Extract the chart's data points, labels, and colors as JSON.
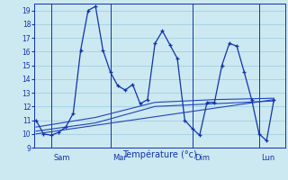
{
  "background_color": "#cce8f0",
  "grid_color": "#99cce0",
  "line_color": "#1133aa",
  "line_color2": "#2244bb",
  "xlabel": "Température (°c)",
  "ylim": [
    9,
    19.5
  ],
  "y_ticks": [
    9,
    10,
    11,
    12,
    13,
    14,
    15,
    16,
    17,
    18,
    19
  ],
  "series1_x": [
    0,
    1,
    2,
    3,
    4,
    5,
    6,
    7,
    8,
    9,
    10,
    11,
    12,
    13,
    14,
    15,
    16,
    17,
    18,
    19,
    20,
    21,
    22,
    23,
    24,
    25,
    26,
    27,
    28,
    29,
    30,
    31,
    32
  ],
  "series1_y": [
    11,
    10,
    9.9,
    10.1,
    10.5,
    11.5,
    16.1,
    19.0,
    19.3,
    16.1,
    14.5,
    13.5,
    13.2,
    13.6,
    12.2,
    12.5,
    16.6,
    17.5,
    16.5,
    15.5,
    11.0,
    10.4,
    9.9,
    12.3,
    12.3,
    15.0,
    16.6,
    16.4,
    14.5,
    12.5,
    10.0,
    9.5,
    12.5
  ],
  "series2_x": [
    0,
    32
  ],
  "series2_y": [
    10.0,
    12.5
  ],
  "series3_x": [
    0,
    8,
    16,
    24,
    32
  ],
  "series3_y": [
    10.2,
    10.8,
    12.0,
    12.2,
    12.4
  ],
  "series4_x": [
    0,
    8,
    16,
    24,
    32
  ],
  "series4_y": [
    10.5,
    11.2,
    12.3,
    12.5,
    12.6
  ],
  "day_vline_positions": [
    2,
    10,
    21,
    30
  ],
  "day_labels": [
    "Sam",
    "Mar",
    "Dim",
    "Lun"
  ],
  "xlim": [
    -0.2,
    33.5
  ]
}
